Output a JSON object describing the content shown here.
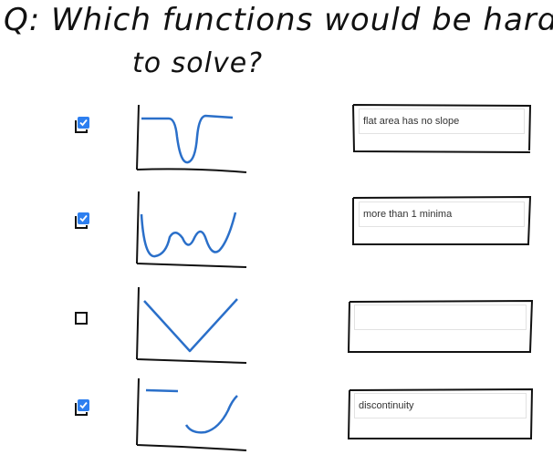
{
  "question": {
    "line1": "Q: Which functions would be hard",
    "line2": "to solve?"
  },
  "colors": {
    "ink": "#111111",
    "curve": "#2a6fc9",
    "check": "#2d7ff0"
  },
  "rows": [
    {
      "checked": true,
      "curve_icon": "u-shape-with-flat-shoulders-icon",
      "answer": "flat area has no slope"
    },
    {
      "checked": true,
      "curve_icon": "w-shape-two-minima-icon",
      "answer": "more than 1 minima"
    },
    {
      "checked": false,
      "curve_icon": "v-shape-icon",
      "answer": ""
    },
    {
      "checked": true,
      "curve_icon": "discontinuous-step-curve-icon",
      "answer": "discontinuity"
    }
  ]
}
